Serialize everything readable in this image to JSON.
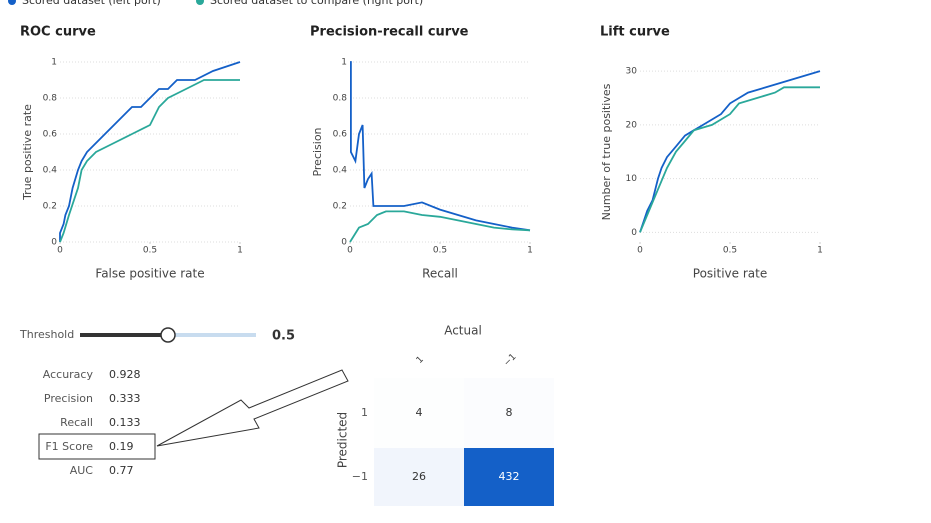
{
  "legend": [
    {
      "name": "Scored dataset (left port)",
      "color": "#1460c8"
    },
    {
      "name": "Scored dataset to compare (right port)",
      "color": "#2aa89a"
    }
  ],
  "chart_data": [
    {
      "type": "line",
      "title": "ROC curve",
      "x_label": "False positive rate",
      "y_label": "True positive rate",
      "xlim": [
        0,
        1
      ],
      "ylim": [
        0,
        1
      ],
      "xticks": [
        0,
        0.5,
        1
      ],
      "yticks": [
        0,
        0.2,
        0.4,
        0.6,
        0.8,
        1
      ],
      "grid": true,
      "series": [
        {
          "color": "#1460c8",
          "x": [
            0,
            0,
            0.02,
            0.03,
            0.05,
            0.07,
            0.1,
            0.12,
            0.15,
            0.2,
            0.25,
            0.3,
            0.35,
            0.4,
            0.45,
            0.5,
            0.55,
            0.6,
            0.65,
            0.75,
            0.85,
            1
          ],
          "values": [
            0,
            0.05,
            0.1,
            0.15,
            0.2,
            0.3,
            0.4,
            0.45,
            0.5,
            0.55,
            0.6,
            0.65,
            0.7,
            0.75,
            0.75,
            0.8,
            0.85,
            0.85,
            0.9,
            0.9,
            0.95,
            1
          ]
        },
        {
          "color": "#2aa89a",
          "x": [
            0,
            0.02,
            0.05,
            0.1,
            0.12,
            0.15,
            0.2,
            0.3,
            0.4,
            0.5,
            0.55,
            0.6,
            0.7,
            0.8,
            1
          ],
          "values": [
            0,
            0.05,
            0.15,
            0.3,
            0.4,
            0.45,
            0.5,
            0.55,
            0.6,
            0.65,
            0.75,
            0.8,
            0.85,
            0.9,
            0.9
          ]
        }
      ]
    },
    {
      "type": "line",
      "title": "Precision-recall curve",
      "x_label": "Recall",
      "y_label": "Precision",
      "xlim": [
        0,
        1
      ],
      "ylim": [
        0,
        1
      ],
      "xticks": [
        0,
        0.5,
        1
      ],
      "yticks": [
        0,
        0.2,
        0.4,
        0.6,
        0.8,
        1
      ],
      "grid": true,
      "series": [
        {
          "color": "#1460c8",
          "x": [
            0,
            0.005,
            0.005,
            0.03,
            0.05,
            0.07,
            0.08,
            0.1,
            0.12,
            0.13,
            0.2,
            0.3,
            0.4,
            0.5,
            0.6,
            0.7,
            0.8,
            0.9,
            1
          ],
          "values": [
            1,
            1,
            0.5,
            0.45,
            0.6,
            0.65,
            0.3,
            0.35,
            0.38,
            0.2,
            0.2,
            0.2,
            0.22,
            0.18,
            0.15,
            0.12,
            0.1,
            0.08,
            0.065
          ]
        },
        {
          "color": "#2aa89a",
          "x": [
            0,
            0.05,
            0.1,
            0.15,
            0.2,
            0.3,
            0.4,
            0.5,
            0.6,
            0.7,
            0.8,
            0.9,
            1
          ],
          "values": [
            0,
            0.08,
            0.1,
            0.15,
            0.17,
            0.17,
            0.15,
            0.14,
            0.12,
            0.1,
            0.08,
            0.07,
            0.065
          ]
        }
      ]
    },
    {
      "type": "line",
      "title": "Lift curve",
      "x_label": "Positive rate",
      "y_label": "Number of true positives",
      "xlim": [
        0,
        1
      ],
      "ylim": [
        -1.8,
        31.7
      ],
      "xticks": [
        0,
        0.5,
        1
      ],
      "yticks": [
        0,
        10,
        20,
        30
      ],
      "grid": true,
      "series": [
        {
          "color": "#1460c8",
          "x": [
            0,
            0.02,
            0.04,
            0.07,
            0.1,
            0.12,
            0.15,
            0.2,
            0.25,
            0.3,
            0.35,
            0.4,
            0.45,
            0.5,
            0.55,
            0.6,
            0.7,
            0.8,
            0.9,
            1
          ],
          "values": [
            0,
            2,
            4,
            6,
            10,
            12,
            14,
            16,
            18,
            19,
            20,
            21,
            22,
            24,
            25,
            26,
            27,
            28,
            29,
            30
          ]
        },
        {
          "color": "#2aa89a",
          "x": [
            0,
            0.05,
            0.1,
            0.15,
            0.2,
            0.25,
            0.3,
            0.4,
            0.45,
            0.5,
            0.55,
            0.65,
            0.75,
            0.8,
            1
          ],
          "values": [
            0,
            4,
            8,
            12,
            15,
            17,
            19,
            20,
            21,
            22,
            24,
            25,
            26,
            27,
            27
          ]
        }
      ]
    },
    {
      "type": "heatmap",
      "title": "Actual",
      "y_label": "Predicted",
      "columns": [
        "1",
        "−1"
      ],
      "rows": [
        "1",
        "−1"
      ],
      "values": [
        [
          4,
          8
        ],
        [
          26,
          432
        ]
      ],
      "color": "#1460c8"
    }
  ],
  "threshold": {
    "label": "Threshold",
    "value": 0.5,
    "range": [
      0,
      1
    ]
  },
  "metrics": [
    {
      "label": "Accuracy",
      "value": 0.928
    },
    {
      "label": "Precision",
      "value": 0.333
    },
    {
      "label": "Recall",
      "value": 0.133
    },
    {
      "label": "F1 Score",
      "value": 0.19
    },
    {
      "label": "AUC",
      "value": 0.77
    }
  ]
}
